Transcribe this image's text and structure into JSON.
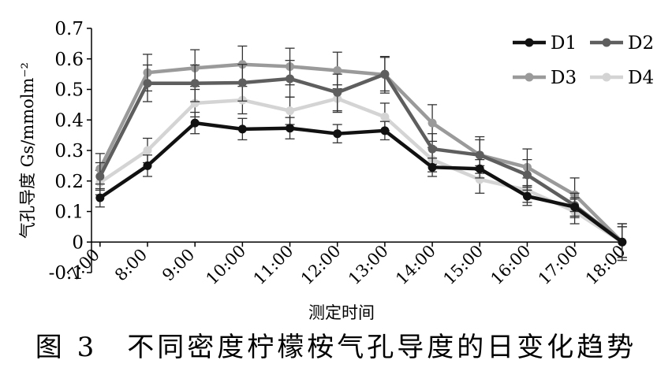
{
  "chart_data": {
    "type": "line",
    "x": [
      "7:00",
      "8:00",
      "9:00",
      "10:00",
      "11:00",
      "12:00",
      "13:00",
      "14:00",
      "15:00",
      "16:00",
      "17:00",
      "18:00"
    ],
    "ylim": [
      -0.1,
      0.7
    ],
    "yticks": [
      -0.1,
      0,
      0.1,
      0.2,
      0.3,
      0.4,
      0.5,
      0.6,
      0.7
    ],
    "ytick_labels": [
      "-0.1",
      "0",
      "0.1",
      "0.2",
      "0.3",
      "0.4",
      "0.5",
      "0.6",
      "0.7"
    ],
    "xlabel": "测定时间",
    "ylabel": "气孔导度 Gs/mmolm⁻²",
    "legend_position": "top-right",
    "grid": false,
    "series": [
      {
        "name": "D1",
        "color": "#111111",
        "values": [
          0.145,
          0.25,
          0.39,
          0.37,
          0.373,
          0.355,
          0.365,
          0.245,
          0.24,
          0.15,
          0.115,
          0.0
        ],
        "errors": [
          0.03,
          0.035,
          0.035,
          0.035,
          0.035,
          0.03,
          0.03,
          0.03,
          0.03,
          0.03,
          0.03,
          0.05
        ]
      },
      {
        "name": "D2",
        "color": "#5e5e5e",
        "values": [
          0.215,
          0.52,
          0.52,
          0.522,
          0.535,
          0.49,
          0.55,
          0.305,
          0.285,
          0.22,
          0.12,
          0.0
        ],
        "errors": [
          0.045,
          0.06,
          0.06,
          0.06,
          0.06,
          0.06,
          0.055,
          0.05,
          0.05,
          0.05,
          0.04,
          0.06
        ]
      },
      {
        "name": "D3",
        "color": "#9a9a9a",
        "values": [
          0.24,
          0.555,
          0.57,
          0.582,
          0.575,
          0.562,
          0.548,
          0.39,
          0.285,
          0.245,
          0.155,
          0.0
        ],
        "errors": [
          0.05,
          0.06,
          0.06,
          0.06,
          0.06,
          0.06,
          0.06,
          0.06,
          0.06,
          0.06,
          0.055,
          0.06
        ]
      },
      {
        "name": "D4",
        "color": "#d4d4d4",
        "values": [
          0.195,
          0.3,
          0.455,
          0.465,
          0.43,
          0.47,
          0.41,
          0.27,
          0.205,
          0.17,
          0.1,
          0.0
        ],
        "errors": [
          0.04,
          0.04,
          0.045,
          0.045,
          0.045,
          0.045,
          0.045,
          0.04,
          0.045,
          0.04,
          0.04,
          0.05
        ]
      }
    ]
  },
  "caption": "图 3　不同密度柠檬桉气孔导度的日变化趋势"
}
